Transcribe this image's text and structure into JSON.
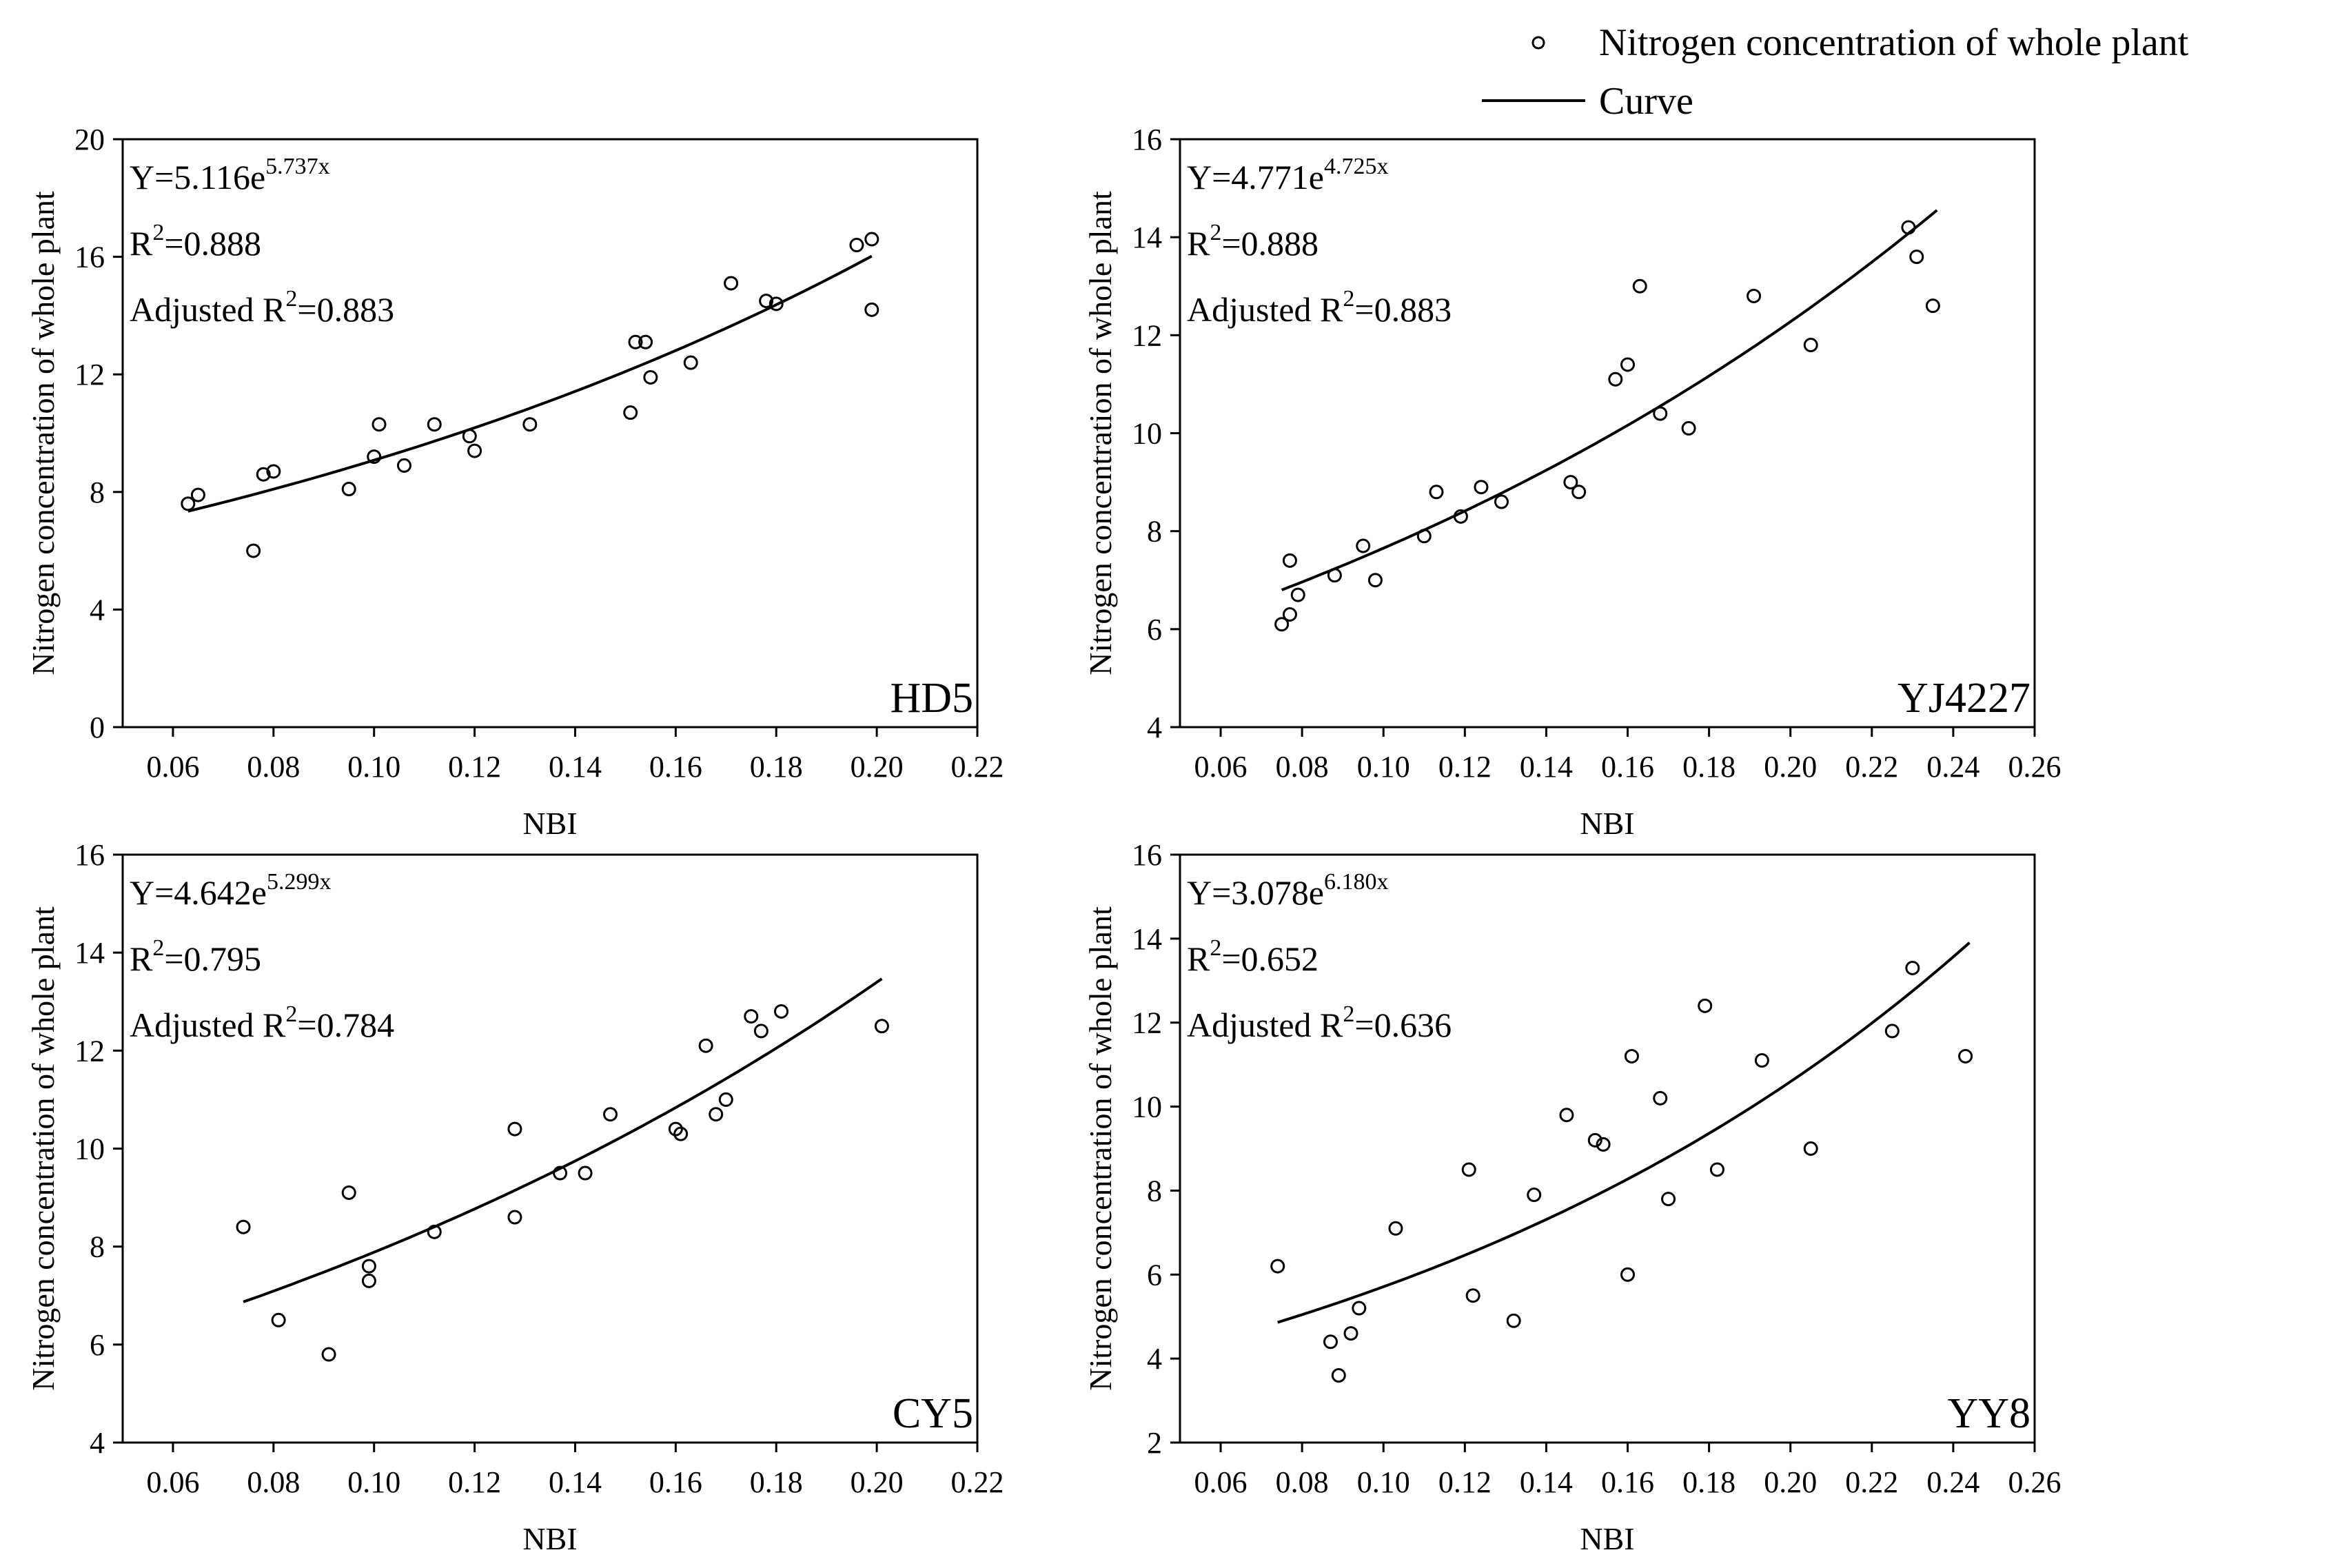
{
  "legend": {
    "points_label": "Nitrogen concentration of whole plant",
    "curve_label": "Curve"
  },
  "chart_data": [
    {
      "type": "scatter",
      "panel": "HD5",
      "xlabel": "NBI",
      "ylabel": "Nitrogen concentration of whole plant",
      "xlim": [
        0.05,
        0.22
      ],
      "ylim": [
        0,
        20
      ],
      "xticks": [
        "0.06",
        "0.08",
        "0.10",
        "0.12",
        "0.14",
        "0.16",
        "0.18",
        "0.20",
        "0.22"
      ],
      "yticks": [
        "0",
        "4",
        "8",
        "12",
        "16",
        "20"
      ],
      "equation": {
        "prefix": "Y=5.116e",
        "exponent": "5.737x"
      },
      "r2": {
        "prefix": "R",
        "sup": "2",
        "value": "=0.888"
      },
      "adj_r2": {
        "prefix": "Adjusted R",
        "sup": "2",
        "value": "=0.883"
      },
      "fit": {
        "a": 5.116,
        "b": 5.737,
        "x_range": [
          0.063,
          0.199
        ]
      },
      "points": [
        [
          0.063,
          7.6
        ],
        [
          0.065,
          7.9
        ],
        [
          0.076,
          6.0
        ],
        [
          0.078,
          8.6
        ],
        [
          0.08,
          8.7
        ],
        [
          0.095,
          8.1
        ],
        [
          0.1,
          9.2
        ],
        [
          0.101,
          10.3
        ],
        [
          0.106,
          8.9
        ],
        [
          0.112,
          10.3
        ],
        [
          0.119,
          9.9
        ],
        [
          0.12,
          9.4
        ],
        [
          0.131,
          10.3
        ],
        [
          0.151,
          10.7
        ],
        [
          0.152,
          13.1
        ],
        [
          0.154,
          13.1
        ],
        [
          0.155,
          11.9
        ],
        [
          0.163,
          12.4
        ],
        [
          0.171,
          15.1
        ],
        [
          0.178,
          14.5
        ],
        [
          0.18,
          14.4
        ],
        [
          0.196,
          16.4
        ],
        [
          0.199,
          16.6
        ],
        [
          0.199,
          14.2
        ]
      ]
    },
    {
      "type": "scatter",
      "panel": "YJ4227",
      "xlabel": "NBI",
      "ylabel": "Nitrogen concentration of whole plant",
      "xlim": [
        0.05,
        0.26
      ],
      "ylim": [
        4,
        16
      ],
      "xticks": [
        "0.06",
        "0.08",
        "0.10",
        "0.12",
        "0.14",
        "0.16",
        "0.18",
        "0.20",
        "0.22",
        "0.24",
        "0.26"
      ],
      "yticks": [
        "4",
        "6",
        "8",
        "10",
        "12",
        "14",
        "16"
      ],
      "equation": {
        "prefix": "Y=4.771e",
        "exponent": "4.725x"
      },
      "r2": {
        "prefix": "R",
        "sup": "2",
        "value": "=0.888"
      },
      "adj_r2": {
        "prefix": "Adjusted R",
        "sup": "2",
        "value": "=0.883"
      },
      "fit": {
        "a": 4.771,
        "b": 4.725,
        "x_range": [
          0.075,
          0.236
        ]
      },
      "points": [
        [
          0.075,
          6.1
        ],
        [
          0.077,
          7.4
        ],
        [
          0.077,
          6.3
        ],
        [
          0.079,
          6.7
        ],
        [
          0.088,
          7.1
        ],
        [
          0.095,
          7.7
        ],
        [
          0.098,
          7.0
        ],
        [
          0.11,
          7.9
        ],
        [
          0.113,
          8.8
        ],
        [
          0.119,
          8.3
        ],
        [
          0.124,
          8.9
        ],
        [
          0.129,
          8.6
        ],
        [
          0.146,
          9.0
        ],
        [
          0.148,
          8.8
        ],
        [
          0.157,
          11.1
        ],
        [
          0.16,
          11.4
        ],
        [
          0.163,
          13.0
        ],
        [
          0.168,
          10.4
        ],
        [
          0.175,
          10.1
        ],
        [
          0.191,
          12.8
        ],
        [
          0.205,
          11.8
        ],
        [
          0.229,
          14.2
        ],
        [
          0.231,
          13.6
        ],
        [
          0.235,
          12.6
        ]
      ]
    },
    {
      "type": "scatter",
      "panel": "CY5",
      "xlabel": "NBI",
      "ylabel": "Nitrogen concentration of whole plant",
      "xlim": [
        0.05,
        0.22
      ],
      "ylim": [
        4,
        16
      ],
      "xticks": [
        "0.06",
        "0.08",
        "0.10",
        "0.12",
        "0.14",
        "0.16",
        "0.18",
        "0.20",
        "0.22"
      ],
      "yticks": [
        "4",
        "6",
        "8",
        "10",
        "12",
        "14",
        "16"
      ],
      "equation": {
        "prefix": "Y=4.642e",
        "exponent": "5.299x"
      },
      "r2": {
        "prefix": "R",
        "sup": "2",
        "value": "=0.795"
      },
      "adj_r2": {
        "prefix": "Adjusted R",
        "sup": "2",
        "value": "=0.784"
      },
      "fit": {
        "a": 4.642,
        "b": 5.299,
        "x_range": [
          0.074,
          0.201
        ]
      },
      "points": [
        [
          0.074,
          8.4
        ],
        [
          0.081,
          6.5
        ],
        [
          0.091,
          5.8
        ],
        [
          0.095,
          9.1
        ],
        [
          0.099,
          7.3
        ],
        [
          0.099,
          7.6
        ],
        [
          0.112,
          8.3
        ],
        [
          0.128,
          10.4
        ],
        [
          0.128,
          8.6
        ],
        [
          0.137,
          9.5
        ],
        [
          0.142,
          9.5
        ],
        [
          0.147,
          10.7
        ],
        [
          0.16,
          10.4
        ],
        [
          0.161,
          10.3
        ],
        [
          0.166,
          12.1
        ],
        [
          0.168,
          10.7
        ],
        [
          0.17,
          11.0
        ],
        [
          0.175,
          12.7
        ],
        [
          0.177,
          12.4
        ],
        [
          0.181,
          12.8
        ],
        [
          0.201,
          12.5
        ]
      ]
    },
    {
      "type": "scatter",
      "panel": "YY8",
      "xlabel": "NBI",
      "ylabel": "Nitrogen concentration of whole plant",
      "xlim": [
        0.05,
        0.26
      ],
      "ylim": [
        2,
        16
      ],
      "xticks": [
        "0.06",
        "0.08",
        "0.10",
        "0.12",
        "0.14",
        "0.16",
        "0.18",
        "0.20",
        "0.22",
        "0.24",
        "0.26"
      ],
      "yticks": [
        "2",
        "4",
        "6",
        "8",
        "10",
        "12",
        "14",
        "16"
      ],
      "equation": {
        "prefix": "Y=3.078e",
        "exponent": "6.180x"
      },
      "r2": {
        "prefix": "R",
        "sup": "2",
        "value": "=0.652"
      },
      "adj_r2": {
        "prefix": "Adjusted R",
        "sup": "2",
        "value": "=0.636"
      },
      "fit": {
        "a": 3.078,
        "b": 6.18,
        "x_range": [
          0.074,
          0.244
        ]
      },
      "points": [
        [
          0.074,
          6.2
        ],
        [
          0.087,
          4.4
        ],
        [
          0.089,
          3.6
        ],
        [
          0.092,
          4.6
        ],
        [
          0.094,
          5.2
        ],
        [
          0.103,
          7.1
        ],
        [
          0.121,
          8.5
        ],
        [
          0.122,
          5.5
        ],
        [
          0.132,
          4.9
        ],
        [
          0.137,
          7.9
        ],
        [
          0.145,
          9.8
        ],
        [
          0.152,
          9.2
        ],
        [
          0.154,
          9.1
        ],
        [
          0.16,
          6.0
        ],
        [
          0.161,
          11.2
        ],
        [
          0.168,
          10.2
        ],
        [
          0.17,
          7.8
        ],
        [
          0.179,
          12.4
        ],
        [
          0.182,
          8.5
        ],
        [
          0.193,
          11.1
        ],
        [
          0.205,
          9.0
        ],
        [
          0.225,
          11.8
        ],
        [
          0.23,
          13.3
        ],
        [
          0.243,
          11.2
        ]
      ]
    }
  ]
}
